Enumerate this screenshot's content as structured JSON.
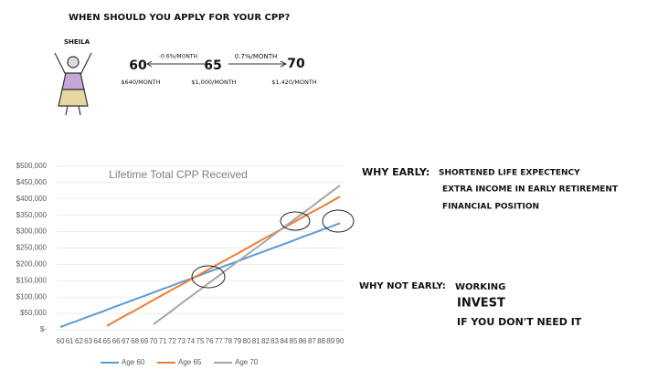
{
  "header": {
    "title": "WHEN SHOULD YOU APPLY FOR YOUR CPP?"
  },
  "example": {
    "name": "SHEILA",
    "left": {
      "age": "60",
      "rate": "-0.6%/MONTH",
      "amount": "$640/MONTH"
    },
    "middle": {
      "age": "65",
      "amount": "$1,000/MONTH"
    },
    "right": {
      "age": "70",
      "rate": "0.7%/MONTH",
      "amount": "$1,420/MONTH"
    }
  },
  "why_early": {
    "heading": "WHY EARLY:",
    "items": [
      "SHORTENED LIFE EXPECTENCY",
      "EXTRA INCOME IN EARLY RETIREMENT",
      "FINANCIAL POSITION"
    ]
  },
  "why_not_early": {
    "heading": "WHY NOT EARLY:",
    "items": [
      "WORKING",
      "INVEST",
      "IF YOU DON'T NEED IT"
    ]
  },
  "chart_data": {
    "type": "line",
    "title": "Lifetime Total CPP Received",
    "categories": [
      "60",
      "61",
      "62",
      "63",
      "64",
      "65",
      "66",
      "67",
      "68",
      "69",
      "70",
      "71",
      "72",
      "73",
      "74",
      "75",
      "76",
      "77",
      "78",
      "79",
      "80",
      "81",
      "82",
      "83",
      "84",
      "85",
      "86",
      "87",
      "88",
      "89",
      "90"
    ],
    "series": [
      {
        "name": "Age 60",
        "color": "#5b9bd5",
        "values": [
          8000,
          19000,
          29000,
          40000,
          50000,
          61000,
          72000,
          82000,
          93000,
          103000,
          114000,
          125000,
          135000,
          146000,
          156000,
          167000,
          178000,
          188000,
          199000,
          209000,
          220000,
          231000,
          241000,
          252000,
          262000,
          273000,
          284000,
          294000,
          305000,
          315000,
          326000
        ]
      },
      {
        "name": "Age 65",
        "color": "#ed7d31",
        "values": [
          null,
          null,
          null,
          null,
          null,
          12000,
          28000,
          44000,
          59000,
          75000,
          91000,
          107000,
          123000,
          138000,
          154000,
          170000,
          186000,
          202000,
          217000,
          233000,
          249000,
          265000,
          281000,
          296000,
          312000,
          328000,
          344000,
          360000,
          375000,
          391000,
          407000
        ]
      },
      {
        "name": "Age 70",
        "color": "#a5a5a5",
        "values": [
          null,
          null,
          null,
          null,
          null,
          null,
          null,
          null,
          null,
          null,
          17000,
          38000,
          59000,
          81000,
          102000,
          123000,
          144000,
          165000,
          187000,
          208000,
          229000,
          250000,
          271000,
          293000,
          314000,
          335000,
          356000,
          377000,
          399000,
          420000,
          441000
        ]
      }
    ],
    "ylim": [
      0,
      500000
    ],
    "yticks": [
      {
        "value": 0,
        "label": "$-"
      },
      {
        "value": 50000,
        "label": "$50,000"
      },
      {
        "value": 100000,
        "label": "$100,000"
      },
      {
        "value": 150000,
        "label": "$150,000"
      },
      {
        "value": 200000,
        "label": "$200,000"
      },
      {
        "value": 250000,
        "label": "$250,000"
      },
      {
        "value": 300000,
        "label": "$300,000"
      },
      {
        "value": 350000,
        "label": "$350,000"
      },
      {
        "value": 400000,
        "label": "$400,000"
      },
      {
        "value": 450000,
        "label": "$450,000"
      },
      {
        "value": 500000,
        "label": "$500,000"
      }
    ],
    "grid": true,
    "legend": "bottom"
  }
}
